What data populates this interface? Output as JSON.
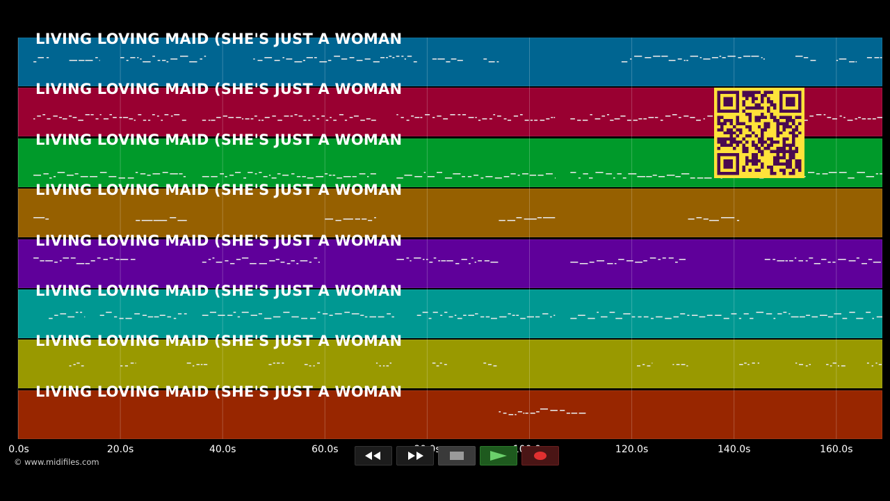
{
  "song": {
    "title": "LIVING LOVING MAID (SHE'S JUST A WOMAN",
    "track_colors": [
      "#006591",
      "#990031",
      "#009a2a",
      "#966000",
      "#5f009a",
      "#009892",
      "#999900",
      "#982600"
    ],
    "note_color": "#e6e6e6"
  },
  "timeline": {
    "duration_s": 169,
    "ticks": [
      "0.0s",
      "20.0s",
      "40.0s",
      "60.0s",
      "80.0s",
      "100.0s",
      "120.0s",
      "140.0s",
      "160.0s"
    ],
    "tick_values": [
      0,
      20,
      40,
      60,
      80,
      100,
      120,
      140,
      160
    ]
  },
  "footer": {
    "copyright": "© www.midifiles.com"
  },
  "transport": {
    "buttons": [
      {
        "name": "rewind-button",
        "icon": "rewind-icon"
      },
      {
        "name": "fast-forward-button",
        "icon": "fast-forward-icon"
      },
      {
        "name": "stop-button",
        "icon": "stop-icon"
      },
      {
        "name": "play-button",
        "icon": "play-icon"
      },
      {
        "name": "record-button",
        "icon": "record-icon"
      }
    ]
  },
  "qr_code": {
    "icon": "qr-code-icon",
    "color_fg": "#4a0a50",
    "color_bg": "#ffe23a"
  },
  "chart_data": {
    "type": "piano-roll",
    "x_unit": "s",
    "xlim": [
      0,
      169
    ],
    "tracks": [
      {
        "segments": [
          [
            3,
            6
          ],
          [
            10,
            16
          ],
          [
            20,
            37
          ],
          [
            46,
            78
          ],
          [
            81,
            87
          ],
          [
            91,
            94
          ],
          [
            118,
            146
          ],
          [
            152,
            156
          ],
          [
            160,
            164
          ],
          [
            166,
            169
          ]
        ],
        "pattern": "melody"
      },
      {
        "segments": [
          [
            3,
            33
          ],
          [
            36,
            70
          ],
          [
            74,
            105
          ],
          [
            108,
            169
          ]
        ],
        "pattern": "dense"
      },
      {
        "segments": [
          [
            3,
            33
          ],
          [
            36,
            70
          ],
          [
            74,
            105
          ],
          [
            108,
            169
          ]
        ],
        "pattern": "melody-low"
      },
      {
        "segments": [
          [
            3,
            6
          ],
          [
            23,
            33
          ],
          [
            60,
            70
          ],
          [
            94,
            105
          ],
          [
            131,
            141
          ]
        ],
        "pattern": "chords"
      },
      {
        "segments": [
          [
            3,
            23
          ],
          [
            36,
            59
          ],
          [
            74,
            94
          ],
          [
            108,
            131
          ],
          [
            146,
            169
          ]
        ],
        "pattern": "melody"
      },
      {
        "segments": [
          [
            6,
            13
          ],
          [
            16,
            33
          ],
          [
            36,
            74
          ],
          [
            78,
            105
          ],
          [
            108,
            169
          ]
        ],
        "pattern": "mixed"
      },
      {
        "segments": [
          [
            10,
            13
          ],
          [
            20,
            23
          ],
          [
            33,
            37
          ],
          [
            49,
            52
          ],
          [
            56,
            59
          ],
          [
            70,
            73
          ],
          [
            81,
            84
          ],
          [
            91,
            94
          ],
          [
            121,
            124
          ],
          [
            128,
            131
          ],
          [
            141,
            145
          ],
          [
            152,
            155
          ],
          [
            158,
            162
          ],
          [
            166,
            169
          ]
        ],
        "pattern": "short"
      },
      {
        "segments": [
          [
            94,
            111
          ]
        ],
        "pattern": "melody"
      }
    ]
  }
}
